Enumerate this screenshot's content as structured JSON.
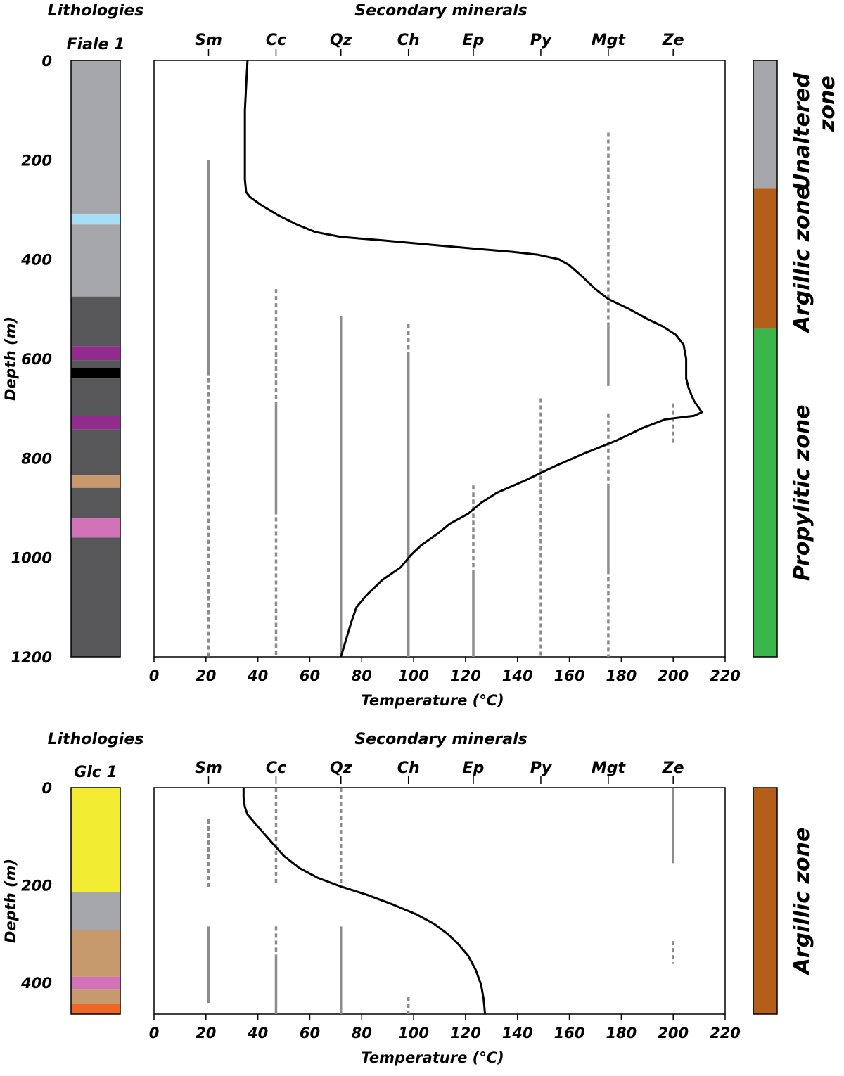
{
  "colors": {
    "gray": "#a6a7ab",
    "dark": "#57575a",
    "light_blue": "#a6dff5",
    "purple": "#922c8c",
    "black": "#000000",
    "tan": "#c69a6c",
    "pink": "#d273b7",
    "yellow": "#f2ec33",
    "orange": "#ef6524",
    "argillic": "#b55e1a",
    "propylitic": "#3ab54a",
    "unaltered": "#a6a7ab",
    "mineral_line": "#8c8c8c",
    "curve": "#000000"
  },
  "chart_data": [
    {
      "type": "line",
      "well": "Fiale 1",
      "lithology_title": "Lithologies",
      "minerals_title": "Secondary minerals",
      "xlabel": "Temperature (°C)",
      "ylabel": "Depth (m)",
      "xlim": [
        0,
        220
      ],
      "ylim": [
        1200,
        0
      ],
      "x_ticks": [
        0,
        20,
        40,
        60,
        80,
        100,
        120,
        140,
        160,
        180,
        200,
        220
      ],
      "y_ticks": [
        0,
        200,
        400,
        600,
        800,
        1000,
        1200
      ],
      "minerals": [
        {
          "name": "Sm",
          "x": 21
        },
        {
          "name": "Cc",
          "x": 47
        },
        {
          "name": "Qz",
          "x": 72
        },
        {
          "name": "Ch",
          "x": 98
        },
        {
          "name": "Ep",
          "x": 123
        },
        {
          "name": "Py",
          "x": 149
        },
        {
          "name": "Mgt",
          "x": 175
        },
        {
          "name": "Ze",
          "x": 200
        }
      ],
      "lithology": [
        {
          "from": 0,
          "to": 310,
          "color": "gray"
        },
        {
          "from": 310,
          "to": 330,
          "color": "light_blue"
        },
        {
          "from": 330,
          "to": 475,
          "color": "gray"
        },
        {
          "from": 475,
          "to": 575,
          "color": "dark"
        },
        {
          "from": 575,
          "to": 603,
          "color": "purple"
        },
        {
          "from": 603,
          "to": 618,
          "color": "dark"
        },
        {
          "from": 618,
          "to": 640,
          "color": "black"
        },
        {
          "from": 640,
          "to": 715,
          "color": "dark"
        },
        {
          "from": 715,
          "to": 742,
          "color": "purple"
        },
        {
          "from": 742,
          "to": 835,
          "color": "dark"
        },
        {
          "from": 835,
          "to": 860,
          "color": "tan"
        },
        {
          "from": 860,
          "to": 920,
          "color": "dark"
        },
        {
          "from": 920,
          "to": 960,
          "color": "pink"
        },
        {
          "from": 960,
          "to": 1200,
          "color": "dark"
        }
      ],
      "zones": [
        {
          "name": "Unaltered zone",
          "from": 0,
          "to": 258,
          "color": "unaltered"
        },
        {
          "name": "Argillic zone",
          "from": 258,
          "to": 540,
          "color": "argillic"
        },
        {
          "name": "Propylitic zone",
          "from": 540,
          "to": 1200,
          "color": "propylitic"
        }
      ],
      "mineral_ranges": [
        {
          "mineral": "Sm",
          "from": 200,
          "to": 625,
          "style": "solid"
        },
        {
          "mineral": "Sm",
          "from": 625,
          "to": 1200,
          "style": "dashed"
        },
        {
          "mineral": "Cc",
          "from": 460,
          "to": 690,
          "style": "dashed"
        },
        {
          "mineral": "Cc",
          "from": 690,
          "to": 905,
          "style": "solid"
        },
        {
          "mineral": "Cc",
          "from": 905,
          "to": 1200,
          "style": "dashed"
        },
        {
          "mineral": "Qz",
          "from": 515,
          "to": 1200,
          "style": "solid"
        },
        {
          "mineral": "Ch",
          "from": 530,
          "to": 595,
          "style": "dashed"
        },
        {
          "mineral": "Ch",
          "from": 595,
          "to": 1200,
          "style": "solid"
        },
        {
          "mineral": "Ep",
          "from": 855,
          "to": 1025,
          "style": "dashed"
        },
        {
          "mineral": "Ep",
          "from": 1025,
          "to": 1200,
          "style": "solid"
        },
        {
          "mineral": "Py",
          "from": 680,
          "to": 1200,
          "style": "dashed"
        },
        {
          "mineral": "Mgt",
          "from": 145,
          "to": 535,
          "style": "dashed"
        },
        {
          "mineral": "Mgt",
          "from": 535,
          "to": 655,
          "style": "solid"
        },
        {
          "mineral": "Mgt",
          "from": 710,
          "to": 855,
          "style": "dashed"
        },
        {
          "mineral": "Mgt",
          "from": 855,
          "to": 1025,
          "style": "solid"
        },
        {
          "mineral": "Mgt",
          "from": 1025,
          "to": 1200,
          "style": "dashed"
        },
        {
          "mineral": "Ze",
          "from": 690,
          "to": 770,
          "style": "dashed"
        }
      ],
      "temperature_profile": [
        [
          36,
          0
        ],
        [
          35.5,
          50
        ],
        [
          35,
          100
        ],
        [
          35,
          150
        ],
        [
          35,
          200
        ],
        [
          35,
          240
        ],
        [
          35.5,
          265
        ],
        [
          37,
          275
        ],
        [
          41,
          290
        ],
        [
          48,
          312
        ],
        [
          55,
          330
        ],
        [
          62,
          345
        ],
        [
          72,
          355
        ],
        [
          88,
          362
        ],
        [
          105,
          370
        ],
        [
          122,
          378
        ],
        [
          138,
          385
        ],
        [
          148,
          391
        ],
        [
          156,
          400
        ],
        [
          160,
          412
        ],
        [
          165,
          435
        ],
        [
          170,
          460
        ],
        [
          175,
          480
        ],
        [
          183,
          500
        ],
        [
          190,
          520
        ],
        [
          196,
          535
        ],
        [
          201,
          552
        ],
        [
          204,
          572
        ],
        [
          205,
          600
        ],
        [
          205,
          640
        ],
        [
          206,
          660
        ],
        [
          208,
          685
        ],
        [
          210,
          700
        ],
        [
          211,
          708
        ],
        [
          208,
          715
        ],
        [
          197,
          722
        ],
        [
          188,
          740
        ],
        [
          178,
          765
        ],
        [
          166,
          790
        ],
        [
          155,
          815
        ],
        [
          143,
          845
        ],
        [
          132,
          870
        ],
        [
          126,
          890
        ],
        [
          121,
          912
        ],
        [
          114,
          932
        ],
        [
          109,
          953
        ],
        [
          103,
          975
        ],
        [
          99,
          995
        ],
        [
          95,
          1020
        ],
        [
          88,
          1045
        ],
        [
          82,
          1075
        ],
        [
          78,
          1100
        ],
        [
          76,
          1130
        ],
        [
          74,
          1165
        ],
        [
          72,
          1200
        ]
      ]
    },
    {
      "type": "line",
      "well": "Glc 1",
      "lithology_title": "Lithologies",
      "minerals_title": "Secondary minerals",
      "xlabel": "Temperature (°C)",
      "ylabel": "Depth (m)",
      "xlim": [
        0,
        220
      ],
      "ylim": [
        465,
        0
      ],
      "x_ticks": [
        0,
        20,
        40,
        60,
        80,
        100,
        120,
        140,
        160,
        180,
        200,
        220
      ],
      "y_ticks": [
        0,
        200,
        400
      ],
      "minerals": [
        {
          "name": "Sm",
          "x": 21
        },
        {
          "name": "Cc",
          "x": 47
        },
        {
          "name": "Qz",
          "x": 72
        },
        {
          "name": "Ch",
          "x": 98
        },
        {
          "name": "Ep",
          "x": 123
        },
        {
          "name": "Py",
          "x": 149
        },
        {
          "name": "Mgt",
          "x": 175
        },
        {
          "name": "Ze",
          "x": 200
        }
      ],
      "lithology": [
        {
          "from": 0,
          "to": 215,
          "color": "yellow"
        },
        {
          "from": 215,
          "to": 292,
          "color": "gray"
        },
        {
          "from": 292,
          "to": 388,
          "color": "tan"
        },
        {
          "from": 388,
          "to": 415,
          "color": "pink"
        },
        {
          "from": 415,
          "to": 444,
          "color": "tan"
        },
        {
          "from": 444,
          "to": 465,
          "color": "orange"
        }
      ],
      "zones": [
        {
          "name": "Argillic zone",
          "from": 0,
          "to": 465,
          "color": "argillic"
        }
      ],
      "mineral_ranges": [
        {
          "mineral": "Sm",
          "from": 65,
          "to": 205,
          "style": "dashed"
        },
        {
          "mineral": "Sm",
          "from": 285,
          "to": 442,
          "style": "solid"
        },
        {
          "mineral": "Cc",
          "from": 0,
          "to": 200,
          "style": "dashed"
        },
        {
          "mineral": "Cc",
          "from": 285,
          "to": 345,
          "style": "dashed"
        },
        {
          "mineral": "Cc",
          "from": 345,
          "to": 465,
          "style": "solid"
        },
        {
          "mineral": "Qz",
          "from": 0,
          "to": 200,
          "style": "dashed"
        },
        {
          "mineral": "Qz",
          "from": 285,
          "to": 465,
          "style": "solid"
        },
        {
          "mineral": "Ch",
          "from": 430,
          "to": 465,
          "style": "dashed"
        },
        {
          "mineral": "Ze",
          "from": 0,
          "to": 155,
          "style": "solid"
        },
        {
          "mineral": "Ze",
          "from": 315,
          "to": 362,
          "style": "dashed"
        }
      ],
      "temperature_profile": [
        [
          34.5,
          0
        ],
        [
          34.5,
          20
        ],
        [
          35,
          40
        ],
        [
          36,
          55
        ],
        [
          40,
          80
        ],
        [
          45,
          110
        ],
        [
          50,
          140
        ],
        [
          56,
          165
        ],
        [
          63,
          185
        ],
        [
          72,
          203
        ],
        [
          82,
          220
        ],
        [
          92,
          240
        ],
        [
          101,
          260
        ],
        [
          108,
          280
        ],
        [
          113,
          300
        ],
        [
          117,
          320
        ],
        [
          121,
          345
        ],
        [
          124,
          375
        ],
        [
          126,
          405
        ],
        [
          127,
          435
        ],
        [
          127.5,
          465
        ]
      ]
    }
  ]
}
